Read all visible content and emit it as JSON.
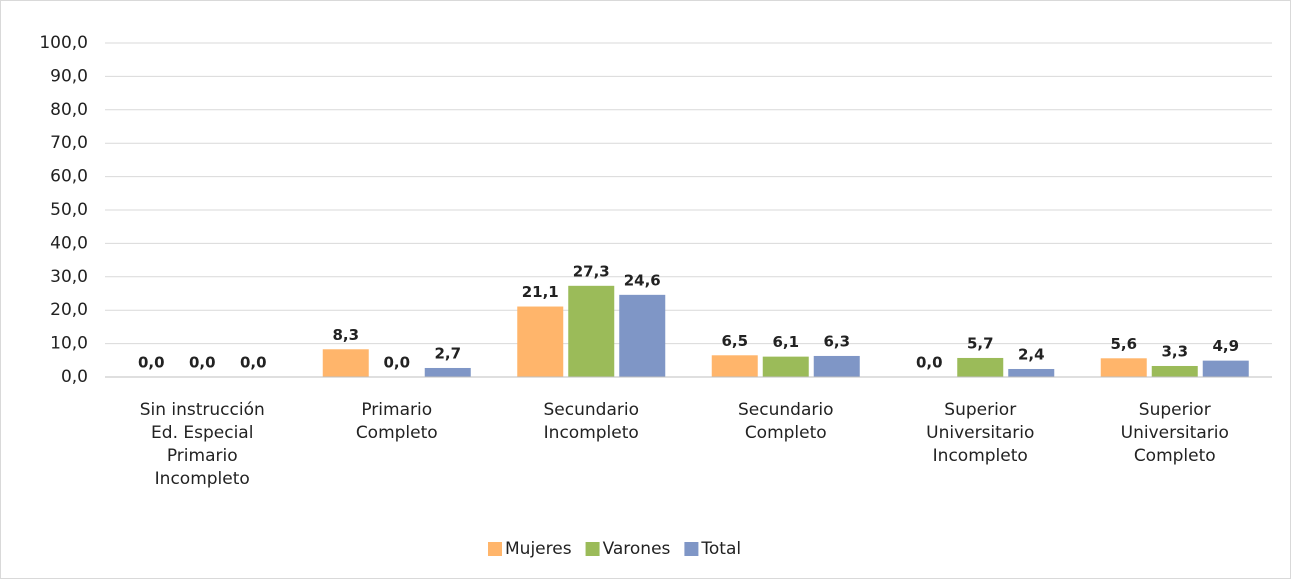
{
  "chart_data": {
    "type": "bar",
    "categories": [
      [
        "Sin instrucción",
        "Ed. Especial",
        "Primario",
        "Incompleto"
      ],
      [
        "Primario",
        "Completo"
      ],
      [
        "Secundario",
        "Incompleto"
      ],
      [
        "Secundario",
        "Completo"
      ],
      [
        "Superior",
        "Universitario",
        "Incompleto"
      ],
      [
        "Superior",
        "Universitario",
        "Completo"
      ]
    ],
    "series": [
      {
        "name": "Mujeres",
        "color": "#ffb56b",
        "values": [
          0,
          8.3,
          21.1,
          6.5,
          0,
          5.6
        ],
        "value_labels": [
          "0,0",
          "8,3",
          "21,1",
          "6,5",
          "0,0",
          "5,6"
        ]
      },
      {
        "name": "Varones",
        "color": "#9bbb59",
        "values": [
          0,
          0,
          27.3,
          6.1,
          5.7,
          3.3
        ],
        "value_labels": [
          "0,0",
          "0,0",
          "27,3",
          "6,1",
          "5,7",
          "3,3"
        ]
      },
      {
        "name": "Total",
        "color": "#7f96c6",
        "values": [
          0,
          2.7,
          24.6,
          6.3,
          2.4,
          4.9
        ],
        "value_labels": [
          "0,0",
          "2,7",
          "24,6",
          "6,3",
          "2,4",
          "4,9"
        ]
      }
    ],
    "ylim": [
      0,
      100
    ],
    "yticks": [
      {
        "value": 0,
        "label": "0,0"
      },
      {
        "value": 10,
        "label": "10,0"
      },
      {
        "value": 20,
        "label": "20,0"
      },
      {
        "value": 30,
        "label": "30,0"
      },
      {
        "value": 40,
        "label": "40,0"
      },
      {
        "value": 50,
        "label": "50,0"
      },
      {
        "value": 60,
        "label": "60,0"
      },
      {
        "value": 70,
        "label": "70,0"
      },
      {
        "value": 80,
        "label": "80,0"
      },
      {
        "value": 90,
        "label": "90,0"
      },
      {
        "value": 100,
        "label": "100,0"
      }
    ],
    "grid": true,
    "legend": "bottom"
  }
}
